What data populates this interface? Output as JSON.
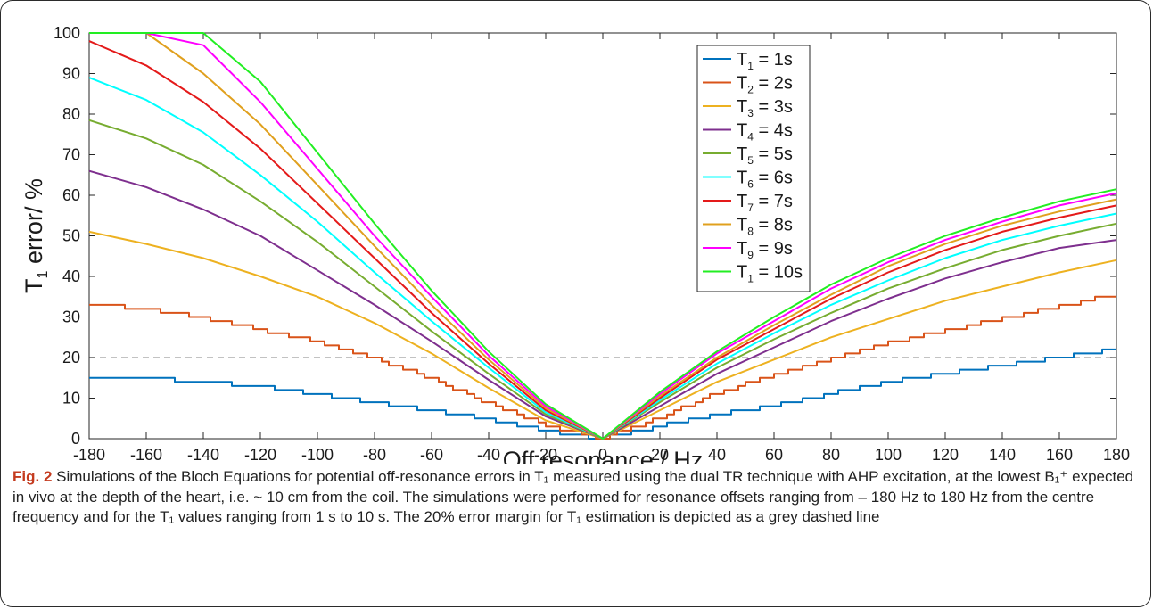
{
  "chart_data": {
    "type": "line",
    "xlabel": "Off resonance / Hz",
    "ylabel": {
      "pre": "T",
      "sub": "1",
      "post": " error/ %"
    },
    "xlim": [
      -180,
      180
    ],
    "ylim": [
      0,
      100
    ],
    "xticks": [
      -180,
      -160,
      -140,
      -120,
      -100,
      -80,
      -60,
      -40,
      -20,
      0,
      20,
      40,
      60,
      80,
      100,
      120,
      140,
      160,
      180
    ],
    "yticks": [
      0,
      10,
      20,
      30,
      40,
      50,
      60,
      70,
      80,
      90,
      100
    ],
    "grid": false,
    "legend_position": "top-right",
    "reference_line": {
      "y": 20,
      "style": "dashed",
      "color": "#9e9e9e"
    },
    "x": [
      -180,
      -160,
      -140,
      -120,
      -100,
      -80,
      -60,
      -40,
      -20,
      0,
      20,
      40,
      60,
      80,
      100,
      120,
      140,
      160,
      180
    ],
    "series": [
      {
        "name": "T1 = 1s",
        "legend": {
          "pre": "T",
          "sub": "1",
          "post": " = 1s"
        },
        "color": "#0072bd",
        "stepped": true,
        "values": [
          15,
          15,
          14,
          13,
          11,
          9,
          7,
          5,
          2,
          0,
          3,
          6,
          8,
          11,
          14,
          16,
          18,
          20,
          22
        ]
      },
      {
        "name": "T1 = 2s",
        "legend": {
          "pre": "T",
          "sub": "2",
          "post": " = 2s"
        },
        "color": "#d95319",
        "stepped": true,
        "values": [
          33.5,
          32,
          30,
          27,
          24,
          20,
          15,
          9,
          3.5,
          0,
          5,
          11,
          15.5,
          19.5,
          23.5,
          26.5,
          29.5,
          32.5,
          35.5
        ]
      },
      {
        "name": "T1 = 3s",
        "legend": {
          "pre": "T",
          "sub": "3",
          "post": " = 3s"
        },
        "color": "#edb120",
        "values": [
          51,
          48,
          44.5,
          40,
          35,
          28.5,
          21,
          12.5,
          4.5,
          0,
          7,
          14,
          19.5,
          25,
          29.5,
          34,
          37.5,
          41,
          44
        ]
      },
      {
        "name": "T1 = 4s",
        "legend": {
          "pre": "T",
          "sub": "4",
          "post": " = 4s"
        },
        "color": "#7e2f8e",
        "values": [
          66,
          62,
          56.5,
          50,
          41.5,
          33,
          24,
          14.5,
          5.5,
          0,
          8,
          16,
          22.5,
          29,
          34.5,
          39.5,
          43.5,
          47,
          49
        ]
      },
      {
        "name": "T1 = 5s",
        "legend": {
          "pre": "T",
          "sub": "5",
          "post": " = 5s"
        },
        "color": "#77ac30",
        "values": [
          78.5,
          74,
          67.5,
          58.5,
          48.5,
          37.5,
          26.5,
          16,
          6,
          0,
          9,
          17.5,
          24.5,
          31,
          37,
          42,
          46.5,
          50,
          53
        ]
      },
      {
        "name": "T1 = 6s",
        "legend": {
          "pre": "T",
          "sub": "6",
          "post": " = 6s"
        },
        "color": "#00ffff",
        "values": [
          89,
          83.5,
          75.5,
          65,
          53.5,
          41,
          29,
          17.5,
          6.5,
          0,
          9.5,
          18.5,
          26,
          33,
          39,
          44.5,
          49,
          52.5,
          55.5
        ]
      },
      {
        "name": "T1 = 7s",
        "legend": {
          "pre": "T",
          "sub": "7",
          "post": " = 7s"
        },
        "color": "#e41a1a",
        "values": [
          98,
          92,
          83,
          71.5,
          58,
          44.5,
          31,
          18.5,
          7,
          0,
          10,
          19.5,
          27,
          34.5,
          41,
          46.5,
          51,
          54.5,
          57.5
        ]
      },
      {
        "name": "T1 = 8s",
        "legend": {
          "pre": "T",
          "sub": "8",
          "post": " = 8s"
        },
        "color": "#e0a01e",
        "values": [
          100,
          100,
          90,
          77.5,
          62.5,
          47.5,
          33,
          19.5,
          7.5,
          0,
          10.5,
          20,
          28,
          35.5,
          42.5,
          48,
          52.5,
          56,
          59
        ]
      },
      {
        "name": "T1 = 9s",
        "legend": {
          "pre": "T",
          "sub": "9",
          "post": " = 9s"
        },
        "color": "#ff00ff",
        "values": [
          100,
          100,
          97,
          83,
          66.5,
          50,
          35,
          20.5,
          8,
          0,
          11,
          21,
          29,
          37,
          43.5,
          49,
          53.5,
          57.5,
          60.5
        ]
      },
      {
        "name": "T1 = 10s",
        "legend": {
          "pre": "T",
          "sub": "1",
          "post": " = 10s"
        },
        "color": "#22ee22",
        "values": [
          100,
          100,
          100,
          88,
          70.5,
          53,
          36.5,
          21.5,
          8.5,
          0,
          11.5,
          21.5,
          30,
          38,
          44.5,
          50,
          54.5,
          58.5,
          61.5
        ]
      }
    ]
  },
  "caption": {
    "label": "Fig. 2",
    "text": " Simulations of the Bloch Equations for potential off-resonance errors in T₁ measured using the dual TR technique with AHP excitation, at the lowest B₁⁺ expected in vivo at the depth of the heart, i.e. ~ 10 cm from the coil. The simulations were performed for resonance offsets ranging from – 180 Hz to 180 Hz from the centre frequency and for the T₁ values ranging from 1 s to 10 s. The 20% error margin for T₁ estimation is depicted as a grey dashed line"
  }
}
